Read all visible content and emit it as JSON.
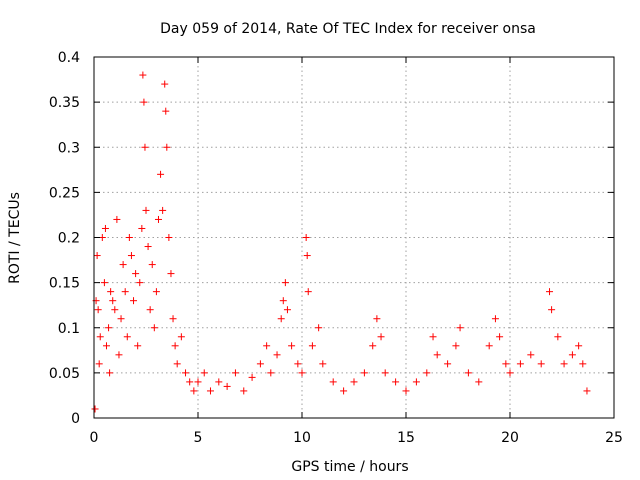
{
  "chart_data": {
    "type": "scatter",
    "title": "Day 059 of 2014, Rate Of TEC Index for receiver onsa",
    "xlabel": "GPS time / hours",
    "ylabel": "ROTI / TECUs",
    "xlim": [
      0,
      25
    ],
    "ylim": [
      0,
      0.4
    ],
    "xticks": [
      0,
      5,
      10,
      15,
      20,
      25
    ],
    "xtick_labels": [
      "0",
      "5",
      "10",
      "15",
      "20",
      "25"
    ],
    "yticks": [
      0,
      0.05,
      0.1,
      0.15,
      0.2,
      0.25,
      0.3,
      0.35,
      0.4
    ],
    "ytick_labels": [
      "0",
      "0.05",
      "0.1",
      "0.15",
      "0.2",
      "0.25",
      "0.3",
      "0.35",
      "0.4"
    ],
    "grid": true,
    "marker": "+",
    "marker_color": "#ff0000",
    "series": [
      {
        "name": "ROTI",
        "points": [
          [
            0.05,
            0.01
          ],
          [
            0.1,
            0.13
          ],
          [
            0.15,
            0.18
          ],
          [
            0.2,
            0.12
          ],
          [
            0.25,
            0.06
          ],
          [
            0.3,
            0.09
          ],
          [
            0.4,
            0.2
          ],
          [
            0.5,
            0.15
          ],
          [
            0.55,
            0.21
          ],
          [
            0.6,
            0.08
          ],
          [
            0.7,
            0.1
          ],
          [
            0.75,
            0.05
          ],
          [
            0.8,
            0.14
          ],
          [
            0.9,
            0.13
          ],
          [
            1.0,
            0.12
          ],
          [
            1.1,
            0.22
          ],
          [
            1.2,
            0.07
          ],
          [
            1.3,
            0.11
          ],
          [
            1.4,
            0.17
          ],
          [
            1.5,
            0.14
          ],
          [
            1.6,
            0.09
          ],
          [
            1.7,
            0.2
          ],
          [
            1.8,
            0.18
          ],
          [
            1.9,
            0.13
          ],
          [
            2.0,
            0.16
          ],
          [
            2.1,
            0.08
          ],
          [
            2.2,
            0.15
          ],
          [
            2.3,
            0.21
          ],
          [
            2.35,
            0.38
          ],
          [
            2.4,
            0.35
          ],
          [
            2.45,
            0.3
          ],
          [
            2.5,
            0.23
          ],
          [
            2.6,
            0.19
          ],
          [
            2.7,
            0.12
          ],
          [
            2.8,
            0.17
          ],
          [
            2.9,
            0.1
          ],
          [
            3.0,
            0.14
          ],
          [
            3.1,
            0.22
          ],
          [
            3.2,
            0.27
          ],
          [
            3.3,
            0.23
          ],
          [
            3.4,
            0.37
          ],
          [
            3.45,
            0.34
          ],
          [
            3.5,
            0.3
          ],
          [
            3.6,
            0.2
          ],
          [
            3.7,
            0.16
          ],
          [
            3.8,
            0.11
          ],
          [
            3.9,
            0.08
          ],
          [
            4.0,
            0.06
          ],
          [
            4.2,
            0.09
          ],
          [
            4.4,
            0.05
          ],
          [
            4.6,
            0.04
          ],
          [
            4.8,
            0.03
          ],
          [
            5.0,
            0.04
          ],
          [
            5.3,
            0.05
          ],
          [
            5.6,
            0.03
          ],
          [
            6.0,
            0.04
          ],
          [
            6.4,
            0.035
          ],
          [
            6.8,
            0.05
          ],
          [
            7.2,
            0.03
          ],
          [
            7.6,
            0.045
          ],
          [
            8.0,
            0.06
          ],
          [
            8.3,
            0.08
          ],
          [
            8.5,
            0.05
          ],
          [
            8.8,
            0.07
          ],
          [
            9.0,
            0.11
          ],
          [
            9.1,
            0.13
          ],
          [
            9.2,
            0.15
          ],
          [
            9.3,
            0.12
          ],
          [
            9.5,
            0.08
          ],
          [
            9.8,
            0.06
          ],
          [
            10.0,
            0.05
          ],
          [
            10.2,
            0.2
          ],
          [
            10.25,
            0.18
          ],
          [
            10.3,
            0.14
          ],
          [
            10.5,
            0.08
          ],
          [
            10.8,
            0.1
          ],
          [
            11.0,
            0.06
          ],
          [
            11.5,
            0.04
          ],
          [
            12.0,
            0.03
          ],
          [
            12.5,
            0.04
          ],
          [
            13.0,
            0.05
          ],
          [
            13.4,
            0.08
          ],
          [
            13.6,
            0.11
          ],
          [
            13.8,
            0.09
          ],
          [
            14.0,
            0.05
          ],
          [
            14.5,
            0.04
          ],
          [
            15.0,
            0.03
          ],
          [
            15.5,
            0.04
          ],
          [
            16.0,
            0.05
          ],
          [
            16.3,
            0.09
          ],
          [
            16.5,
            0.07
          ],
          [
            17.0,
            0.06
          ],
          [
            17.4,
            0.08
          ],
          [
            17.6,
            0.1
          ],
          [
            18.0,
            0.05
          ],
          [
            18.5,
            0.04
          ],
          [
            19.0,
            0.08
          ],
          [
            19.3,
            0.11
          ],
          [
            19.5,
            0.09
          ],
          [
            19.8,
            0.06
          ],
          [
            20.0,
            0.05
          ],
          [
            20.5,
            0.06
          ],
          [
            21.0,
            0.07
          ],
          [
            21.5,
            0.06
          ],
          [
            21.9,
            0.14
          ],
          [
            22.0,
            0.12
          ],
          [
            22.3,
            0.09
          ],
          [
            22.6,
            0.06
          ],
          [
            23.0,
            0.07
          ],
          [
            23.3,
            0.08
          ],
          [
            23.5,
            0.06
          ],
          [
            23.7,
            0.03
          ]
        ]
      }
    ]
  }
}
